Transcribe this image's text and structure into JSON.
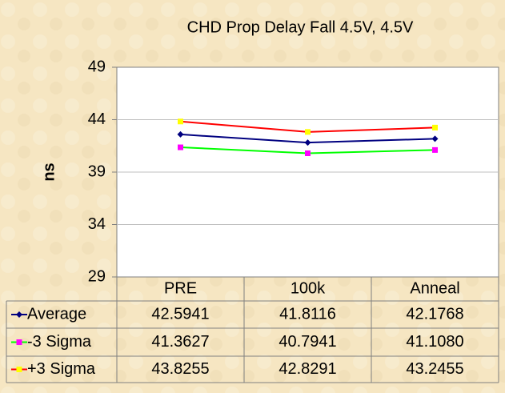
{
  "chart_data": {
    "type": "line",
    "title": "CHD Prop Delay Fall 4.5V, 4.5V",
    "y_label": "ns",
    "categories": [
      "PRE",
      "100k",
      "Anneal"
    ],
    "series": [
      {
        "name": "Average",
        "color": "#000080",
        "marker_color": "#000080",
        "values": [
          42.5941,
          41.8116,
          42.1768
        ],
        "value_labels": [
          "42.5941",
          "41.8116",
          "42.1768"
        ]
      },
      {
        "name": "-3 Sigma",
        "color": "#00ff00",
        "marker_color": "#ff00ff",
        "values": [
          41.3627,
          40.7941,
          41.108
        ],
        "value_labels": [
          "41.3627",
          "40.7941",
          "41.1080"
        ]
      },
      {
        "name": "+3 Sigma",
        "color": "#ff0000",
        "marker_color": "#ffff00",
        "values": [
          43.8255,
          42.8291,
          43.2455
        ],
        "value_labels": [
          "43.8255",
          "42.8291",
          "43.2455"
        ]
      }
    ],
    "ylim": [
      29,
      49
    ],
    "yticks": [
      29,
      34,
      39,
      44,
      49
    ],
    "grid": true
  }
}
